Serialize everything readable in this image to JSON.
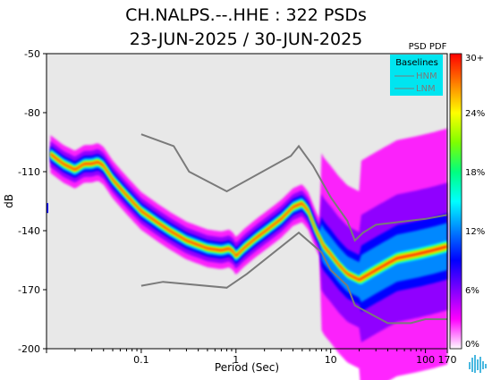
{
  "chart_data": {
    "type": "heatmap",
    "title": "CH.NALPS.--.HHE : 322 PSDs",
    "subtitle": "23-JUN-2025 / 30-JUN-2025",
    "xlabel": "Period (Sec)",
    "ylabel": "dB",
    "x_scale": "log",
    "xlim": [
      0.01,
      170
    ],
    "ylim": [
      -200,
      -50
    ],
    "x_ticks": [
      {
        "value": 0.1,
        "label": "0.1"
      },
      {
        "value": 1,
        "label": "1"
      },
      {
        "value": 10,
        "label": "10"
      },
      {
        "value": 100,
        "label": "100"
      },
      {
        "value": 170,
        "label": "170"
      }
    ],
    "y_ticks": [
      {
        "value": -50,
        "label": "-50"
      },
      {
        "value": -80,
        "label": "-80"
      },
      {
        "value": -110,
        "label": "-110"
      },
      {
        "value": -140,
        "label": "-140"
      },
      {
        "value": -170,
        "label": "-170"
      },
      {
        "value": -200,
        "label": "-200"
      }
    ],
    "colorbar": {
      "title": "PSD PDF",
      "tick_labels": [
        "30+",
        "24%",
        "18%",
        "12%",
        "6%",
        "0%"
      ],
      "colors": [
        "#ff0000",
        "#ff7f00",
        "#ffff00",
        "#7fff00",
        "#00ff7f",
        "#00ffff",
        "#007fff",
        "#0000ff",
        "#7f00ff",
        "#ff00ff",
        "#ffffff"
      ]
    },
    "legend": {
      "title": "Baselines",
      "entries": [
        "HNM",
        "LNM"
      ],
      "placement": "top-right",
      "background": "#00e5f0"
    },
    "baselines": {
      "HNM": {
        "x": [
          0.1,
          0.22,
          0.32,
          0.8,
          3.8,
          4.6,
          6.5,
          10,
          15,
          18,
          22,
          30,
          100,
          170
        ],
        "y": [
          -91,
          -97,
          -110,
          -120,
          -102,
          -97,
          -107,
          -123,
          -135,
          -145,
          -141,
          -137,
          -134,
          -132
        ]
      },
      "LNM": {
        "x": [
          0.1,
          0.17,
          0.8,
          1.3,
          4.6,
          8,
          10,
          15,
          18,
          40,
          70,
          100,
          170
        ],
        "y": [
          -168,
          -166,
          -169,
          -162,
          -141,
          -151,
          -160,
          -168,
          -178,
          -187,
          -187,
          -185,
          -185
        ]
      }
    },
    "pdf_ridge": {
      "x": [
        0.011,
        0.015,
        0.02,
        0.025,
        0.03,
        0.035,
        0.04,
        0.05,
        0.07,
        0.1,
        0.15,
        0.2,
        0.3,
        0.5,
        0.7,
        0.85,
        0.95,
        1.0,
        1.2,
        1.6,
        2.2,
        3.0,
        4.0,
        5.0,
        5.8,
        7.0,
        8.5,
        10,
        12,
        15,
        20,
        30,
        50,
        80,
        120,
        170
      ],
      "y": [
        -101,
        -106,
        -109,
        -106,
        -106,
        -105,
        -107,
        -114,
        -122,
        -130,
        -136,
        -140,
        -145,
        -149,
        -150,
        -149,
        -151,
        -153,
        -149,
        -144,
        -139,
        -134,
        -128,
        -126,
        -130,
        -140,
        -148,
        -152,
        -157,
        -162,
        -165,
        -160,
        -154,
        -152,
        -150,
        -148
      ]
    },
    "grid": false,
    "background": "#e8e8e8"
  }
}
